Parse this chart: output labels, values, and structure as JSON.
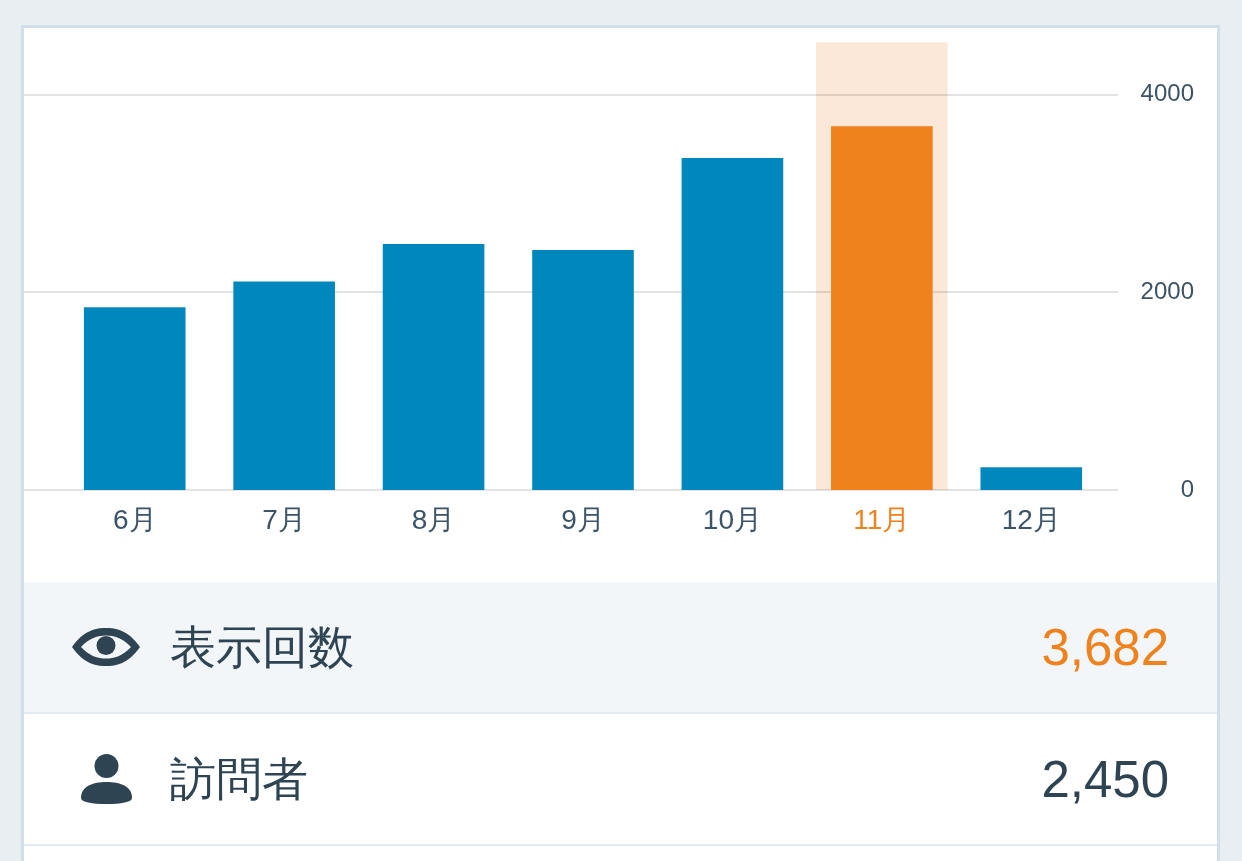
{
  "chart_data": {
    "type": "bar",
    "categories": [
      "6月",
      "7月",
      "8月",
      "9月",
      "10月",
      "11月",
      "12月"
    ],
    "values": [
      1850,
      2110,
      2490,
      2430,
      3360,
      3682,
      230
    ],
    "colors": [
      "#0087be",
      "#0087be",
      "#0087be",
      "#0087be",
      "#0087be",
      "#f0821e",
      "#0087be"
    ],
    "ylim": [
      0,
      4530
    ],
    "yticks": [
      0,
      2000,
      4000
    ],
    "grid": "y",
    "bands": [
      {
        "axis": "x",
        "from": "11月",
        "to": "11月",
        "color": "#fbe8d8"
      }
    ],
    "annotations": [
      "表示回数",
      "3,682",
      "訪問者",
      "2,450"
    ]
  }
}
